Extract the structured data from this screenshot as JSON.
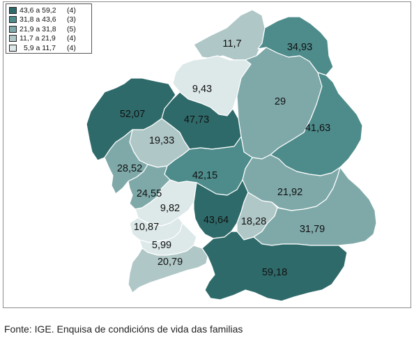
{
  "legend": {
    "classes": [
      {
        "range": "43,6 a 59,2",
        "count": "(4)",
        "color": "#2f6a6a"
      },
      {
        "range": "31,8 a 43,6",
        "count": "(3)",
        "color": "#4e8b8b"
      },
      {
        "range": "21,9 a 31,8",
        "count": "(5)",
        "color": "#7fa9a9"
      },
      {
        "range": "11,7 a 21,9",
        "count": "(4)",
        "color": "#b0c7c7"
      },
      {
        "range": "5,9 a 11,7",
        "count": "(4)",
        "color": "#dde8e8"
      }
    ]
  },
  "regions": [
    {
      "id": "north-tip",
      "value": "11,7",
      "class": 3
    },
    {
      "id": "northeast",
      "value": "34,93",
      "class": 1
    },
    {
      "id": "north-coast",
      "value": "9,43",
      "class": 4
    },
    {
      "id": "lugo-central",
      "value": "29",
      "class": 2
    },
    {
      "id": "west-coast",
      "value": "52,07",
      "class": 0
    },
    {
      "id": "central-north",
      "value": "47,73",
      "class": 0
    },
    {
      "id": "east",
      "value": "41,63",
      "class": 1
    },
    {
      "id": "west-central",
      "value": "19,33",
      "class": 3
    },
    {
      "id": "southwest-coast",
      "value": "28,52",
      "class": 2
    },
    {
      "id": "central",
      "value": "42,15",
      "class": 1
    },
    {
      "id": "rias",
      "value": "24,55",
      "class": 2
    },
    {
      "id": "southeast-interior",
      "value": "21,92",
      "class": 2
    },
    {
      "id": "pontevedra-interior",
      "value": "9,82",
      "class": 4
    },
    {
      "id": "ourense-north",
      "value": "43,64",
      "class": 0
    },
    {
      "id": "ourense-center",
      "value": "18,28",
      "class": 3
    },
    {
      "id": "vigo-coast",
      "value": "10,87",
      "class": 4
    },
    {
      "id": "ourense-east",
      "value": "31,79",
      "class": 2
    },
    {
      "id": "vigo-south",
      "value": "5,99",
      "class": 4
    },
    {
      "id": "miño-south",
      "value": "20,79",
      "class": 3
    },
    {
      "id": "ourense-south",
      "value": "59,18",
      "class": 0
    }
  ],
  "source": "Fonte: IGE. Enquisa de condicións de vida das familias"
}
